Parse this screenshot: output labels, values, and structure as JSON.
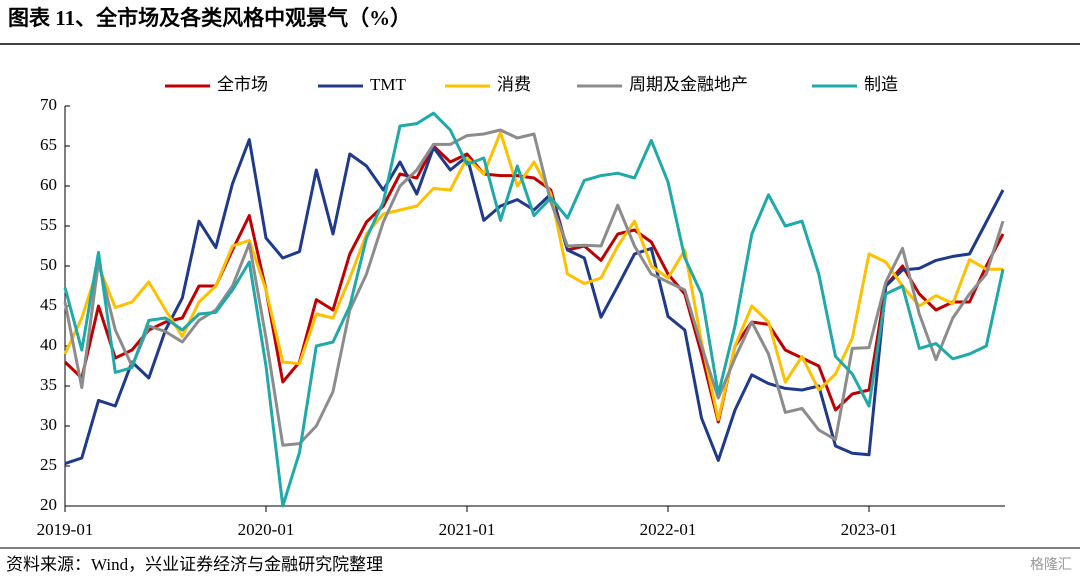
{
  "chart_data": {
    "type": "line",
    "title": "图表 11、全市场及各类风格中观景气（%）",
    "source": "资料来源：Wind，兴业证券经济与金融研究院整理",
    "watermark": "格隆汇",
    "categories": [
      "2019-01",
      null,
      null,
      null,
      null,
      null,
      null,
      null,
      null,
      null,
      null,
      null,
      "2020-01",
      null,
      null,
      null,
      null,
      null,
      null,
      null,
      null,
      null,
      null,
      null,
      "2021-01",
      null,
      null,
      null,
      null,
      null,
      null,
      null,
      null,
      null,
      null,
      null,
      "2022-01",
      null,
      null,
      null,
      null,
      null,
      null,
      null,
      null,
      null,
      null,
      null,
      "2023-01",
      null,
      null,
      null,
      null,
      null,
      null,
      null,
      null
    ],
    "ylim": [
      20,
      70
    ],
    "yticks": [
      20,
      25,
      30,
      35,
      40,
      45,
      50,
      55,
      60,
      65,
      70
    ],
    "grid": false,
    "legend": "top",
    "series": [
      {
        "name": "全市场",
        "color": "#c00000",
        "values": [
          38,
          36,
          45,
          38.5,
          39.5,
          42,
          43,
          43.5,
          47.5,
          47.5,
          52,
          56.3,
          47,
          35.5,
          38,
          45.8,
          44.5,
          51.5,
          55.5,
          57.5,
          61.5,
          61,
          65,
          63,
          64,
          61.5,
          61.3,
          61.3,
          61,
          59.5,
          52,
          52.5,
          50.7,
          54,
          54.5,
          53,
          49,
          46.5,
          39,
          30.5,
          40,
          43,
          42.7,
          39.5,
          38.5,
          37.5,
          32,
          34,
          34.5,
          47.5,
          50,
          46.5,
          44.5,
          45.5,
          45.5,
          50,
          54
        ]
      },
      {
        "name": "TMT",
        "color": "#1f3a8a",
        "values": [
          25.3,
          26,
          33.2,
          32.5,
          38,
          36,
          42,
          46,
          55.6,
          52.3,
          60.3,
          65.8,
          53.5,
          51,
          51.8,
          62,
          54,
          64,
          62.5,
          59.5,
          63,
          59,
          64.8,
          62,
          63.7,
          55.7,
          57.5,
          58.3,
          57,
          59,
          52,
          51,
          43.6,
          47.5,
          51.5,
          52.2,
          43.7,
          42,
          31,
          25.7,
          32,
          36.4,
          35.3,
          34.7,
          34.5,
          35,
          27.5,
          26.6,
          26.4,
          47.5,
          49.5,
          49.7,
          50.7,
          51.2,
          51.5,
          55.5,
          59.5
        ]
      },
      {
        "name": "消费",
        "color": "#ffc000",
        "values": [
          39,
          43.5,
          50,
          44.8,
          45.5,
          48,
          44.5,
          41.2,
          45.5,
          47.5,
          52.5,
          53.2,
          47,
          38,
          37.8,
          44,
          43.5,
          48.5,
          54,
          56.5,
          57,
          57.5,
          59.7,
          59.5,
          63.5,
          61.5,
          66.7,
          60,
          63,
          59,
          49,
          47.8,
          48.5,
          52.5,
          55.6,
          50,
          48.5,
          52,
          40.5,
          30.8,
          40,
          45,
          43,
          35.5,
          38.7,
          34.5,
          36.5,
          41,
          51.5,
          50.5,
          47.5,
          45,
          46.3,
          45.3,
          50.8,
          49.6,
          49.6
        ]
      },
      {
        "name": "周期及金融地产",
        "color": "#8c8c8c",
        "values": [
          45.5,
          34.8,
          50.5,
          42,
          37.5,
          42.5,
          41.8,
          40.5,
          43.2,
          44.5,
          47.5,
          52.8,
          41,
          27.6,
          27.8,
          30,
          34.3,
          44.5,
          49,
          55.5,
          60,
          62,
          65.2,
          65.2,
          66.3,
          66.5,
          67,
          66,
          66.5,
          58,
          52.5,
          52.6,
          52.5,
          57.6,
          52.5,
          49,
          48,
          47,
          40,
          33.5,
          38.5,
          43,
          39,
          31.7,
          32.2,
          29.5,
          28.3,
          39.7,
          39.8,
          48,
          52.2,
          44,
          38.3,
          43.5,
          46.5,
          49,
          55.6
        ]
      },
      {
        "name": "制造",
        "color": "#1fa9a9",
        "values": [
          47.3,
          39.5,
          51.7,
          36.7,
          37.3,
          43.2,
          43.5,
          42,
          44,
          44.2,
          47,
          50.5,
          37.5,
          20,
          26.7,
          40,
          40.5,
          45,
          53.5,
          58,
          67.5,
          67.8,
          69.1,
          67,
          62.7,
          63.5,
          55.7,
          62.5,
          56.3,
          58.5,
          56,
          60.7,
          61.3,
          61.6,
          61,
          65.7,
          60.5,
          51,
          46.5,
          34,
          42.5,
          54,
          58.9,
          55,
          55.6,
          49,
          38.7,
          36.5,
          32.5,
          46.5,
          47.5,
          39.7,
          40.3,
          38.4,
          39,
          40,
          49.6
        ]
      }
    ]
  }
}
